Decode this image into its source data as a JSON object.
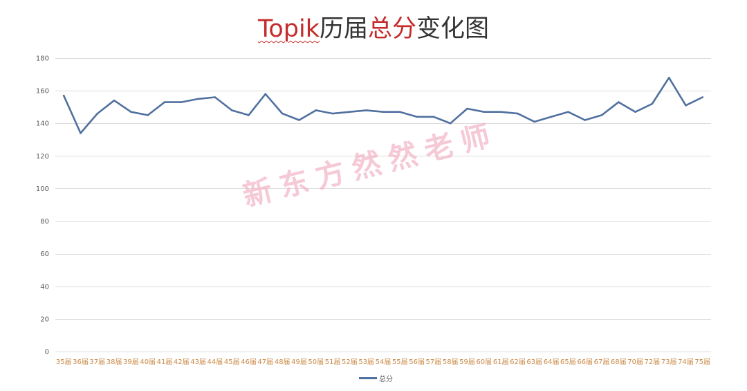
{
  "chart_data": {
    "type": "line",
    "title": "Topik历届总分变化图",
    "title_highlights": [
      "Topik",
      "总分"
    ],
    "categories": [
      "35届",
      "36届",
      "37届",
      "38届",
      "39届",
      "40届",
      "41届",
      "42届",
      "43届",
      "44届",
      "45届",
      "46届",
      "47届",
      "48届",
      "49届",
      "50届",
      "51届",
      "52届",
      "53届",
      "54届",
      "55届",
      "56届",
      "57届",
      "58届",
      "59届",
      "60届",
      "61届",
      "62届",
      "63届",
      "64届",
      "65届",
      "66届",
      "67届",
      "68届",
      "70届",
      "72届",
      "73届",
      "74届",
      "75届"
    ],
    "series": [
      {
        "name": "总分",
        "values": [
          157,
          134,
          146,
          154,
          147,
          145,
          153,
          153,
          155,
          156,
          148,
          145,
          158,
          146,
          142,
          148,
          146,
          147,
          148,
          147,
          147,
          144,
          144,
          140,
          149,
          147,
          147,
          146,
          141,
          144,
          147,
          142,
          145,
          153,
          147,
          152,
          168,
          151,
          156
        ]
      }
    ],
    "ylim": [
      0,
      180
    ],
    "yticks": [
      0,
      20,
      40,
      60,
      80,
      100,
      120,
      140,
      160,
      180
    ],
    "grid": "horizontal",
    "legend": "bottom",
    "colors": {
      "line": "#50709F",
      "title_text": "#333333",
      "title_highlight": "#C42B2B",
      "x_tick_labels": "#C98A45",
      "y_tick_labels": "#595959",
      "gridlines": "#DCDCDC",
      "legend_text": "#595959"
    }
  },
  "watermark": {
    "text": "新东方然然老师",
    "color": "#F3B3C6"
  }
}
